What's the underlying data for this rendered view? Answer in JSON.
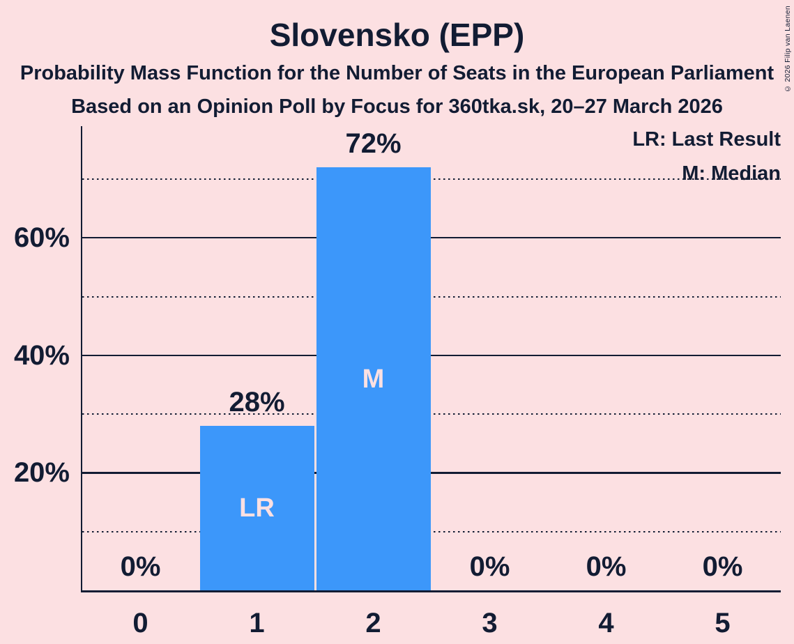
{
  "header": {
    "title": "Slovensko (EPP)",
    "subtitle1": "Probability Mass Function for the Number of Seats in the European Parliament",
    "subtitle2": "Based on an Opinion Poll by Focus for 360tka.sk, 20–27 March 2026",
    "copyright": "© 2026 Filip van Laenen"
  },
  "chart_data": {
    "type": "bar",
    "title": "Slovensko (EPP)",
    "categories": [
      "0",
      "1",
      "2",
      "3",
      "4",
      "5"
    ],
    "values": [
      0,
      28,
      72,
      0,
      0,
      0
    ],
    "value_labels": [
      "0%",
      "28%",
      "72%",
      "0%",
      "0%",
      "0%"
    ],
    "bar_annotations": [
      "",
      "LR",
      "M",
      "",
      "",
      ""
    ],
    "legend_lr": "LR: Last Result",
    "legend_m": "M: Median",
    "annotation_key": {
      "LR": "Last Result",
      "M": "Median"
    },
    "xlabel": "",
    "ylabel": "",
    "ylim": [
      0,
      79
    ],
    "gridlines_solid": [
      20,
      40,
      60
    ],
    "gridlines_dotted": [
      10,
      30,
      50,
      70
    ],
    "ytick_labels": {
      "20": "20%",
      "40": "40%",
      "60": "60%"
    },
    "grid": true,
    "legend_position": "top-right",
    "bar_color": "#3C97FA",
    "background_color": "#FCE0E2",
    "text_color": "#121C33"
  }
}
